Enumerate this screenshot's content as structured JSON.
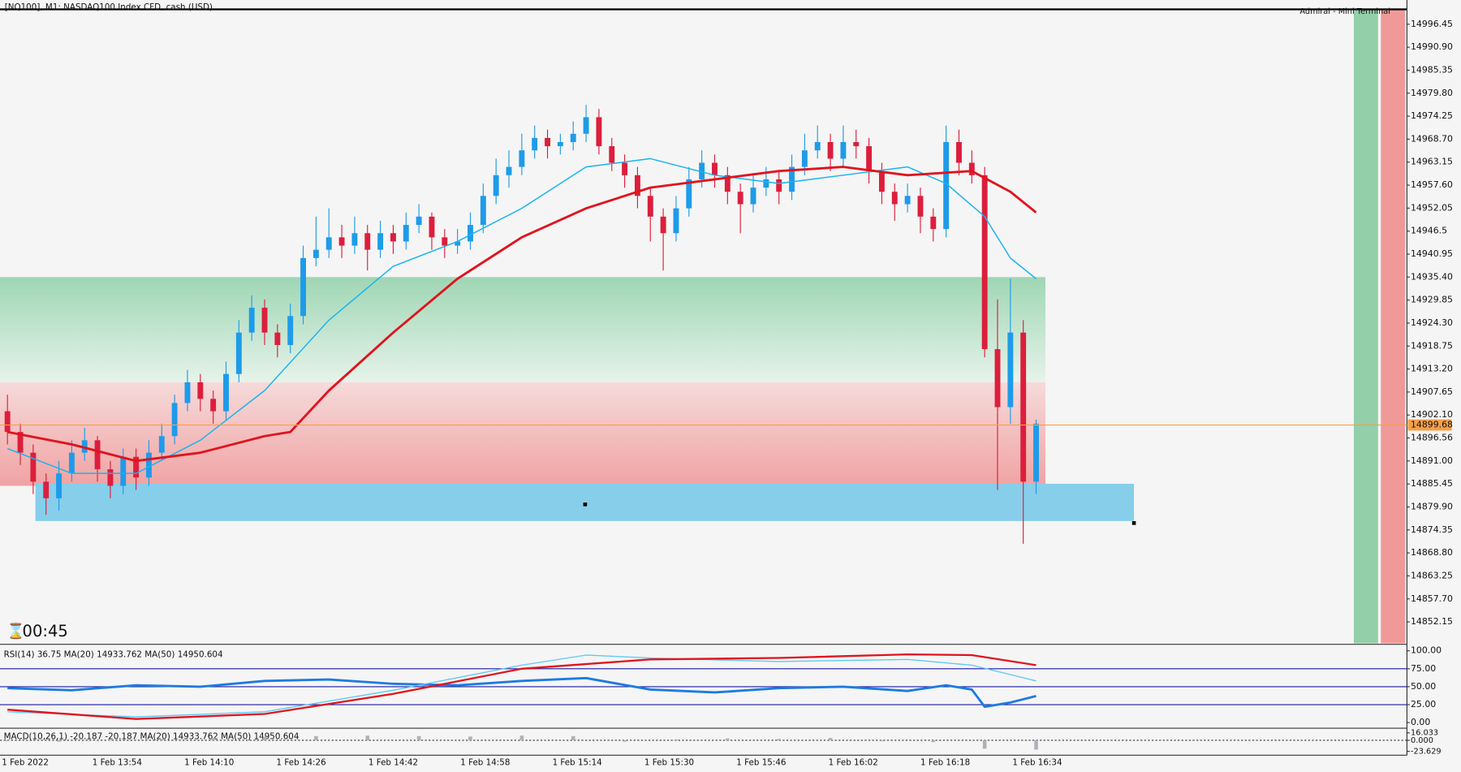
{
  "header": {
    "symbol": "[NQ100], M1:  NASDAQ100 Index CFD, cash (USD)",
    "terminal": "Admiral - Mini Terminal",
    "timer": "00:45"
  },
  "chart_data": {
    "type": "candlestick",
    "colors": {
      "up": "#1e9be9",
      "down": "#dc1e3c",
      "ma20": "#18b4ef",
      "ma50": "#e0141e"
    },
    "ylim": [
      14846.97,
      15000.05
    ],
    "yticks": [
      14996.45,
      {
        "value": 14990.9,
        "label": "14990.90"
      },
      14985.35,
      {
        "value": 14979.8,
        "label": "14979.80"
      },
      14974.25,
      {
        "value": 14968.7,
        "label": "14968.70"
      },
      14963.15,
      {
        "value": 14957.6,
        "label": "14957.60"
      },
      14952.05,
      14946.5,
      14940.95,
      {
        "value": 14935.4,
        "label": "14935.40"
      },
      14929.85,
      {
        "value": 14924.3,
        "label": "14924.30"
      },
      14918.75,
      {
        "value": 14913.2,
        "label": "14913.20"
      },
      14907.65,
      {
        "value": 14902.1,
        "label": "14902.10"
      },
      14896.56,
      {
        "value": 14891.0,
        "label": "14891.00"
      },
      14885.45,
      {
        "value": 14879.9,
        "label": "14879.90"
      },
      14874.35,
      {
        "value": 14868.8,
        "label": "14868.80"
      },
      14863.25,
      {
        "value": 14857.7,
        "label": "14857.70"
      },
      14852.15
    ],
    "current_price": {
      "value": 14899.68,
      "label": "14899.68"
    },
    "x_labels": [
      "1 Feb 2022",
      "1 Feb 13:54",
      "1 Feb 14:10",
      "1 Feb 14:26",
      "1 Feb 14:42",
      "1 Feb 14:58",
      "1 Feb 15:14",
      "1 Feb 15:30",
      "1 Feb 15:46",
      "1 Feb 16:02",
      "1 Feb 16:18",
      "1 Feb 16:34"
    ],
    "ohlc": [
      [
        14903,
        14907,
        14895,
        14898
      ],
      [
        14898,
        14900,
        14890,
        14893
      ],
      [
        14893,
        14895,
        14883,
        14886
      ],
      [
        14886,
        14888,
        14878,
        14882
      ],
      [
        14882,
        14891,
        14879,
        14888
      ],
      [
        14888,
        14896,
        14886,
        14893
      ],
      [
        14893,
        14899,
        14891,
        14896
      ],
      [
        14896,
        14897,
        14886,
        14889
      ],
      [
        14889,
        14891,
        14882,
        14885
      ],
      [
        14885,
        14894,
        14883,
        14892
      ],
      [
        14892,
        14894,
        14884,
        14887
      ],
      [
        14887,
        14896,
        14885,
        14893
      ],
      [
        14893,
        14900,
        14891,
        14897
      ],
      [
        14897,
        14907,
        14895,
        14905
      ],
      [
        14905,
        14913,
        14903,
        14910
      ],
      [
        14910,
        14912,
        14903,
        14906
      ],
      [
        14906,
        14908,
        14900,
        14903
      ],
      [
        14903,
        14915,
        14901,
        14912
      ],
      [
        14912,
        14925,
        14910,
        14922
      ],
      [
        14922,
        14931,
        14920,
        14928
      ],
      [
        14928,
        14930,
        14919,
        14922
      ],
      [
        14922,
        14924,
        14916,
        14919
      ],
      [
        14919,
        14929,
        14917,
        14926
      ],
      [
        14926,
        14943,
        14924,
        14940
      ],
      [
        14940,
        14950,
        14938,
        14942
      ],
      [
        14942,
        14952,
        14940,
        14945
      ],
      [
        14945,
        14948,
        14940,
        14943
      ],
      [
        14943,
        14950,
        14941,
        14946
      ],
      [
        14946,
        14948,
        14937,
        14942
      ],
      [
        14942,
        14949,
        14940,
        14946
      ],
      [
        14946,
        14948,
        14941,
        14944
      ],
      [
        14944,
        14951,
        14942,
        14948
      ],
      [
        14948,
        14953,
        14946,
        14950
      ],
      [
        14950,
        14951,
        14942,
        14945
      ],
      [
        14945,
        14947,
        14940,
        14943
      ],
      [
        14943,
        14947,
        14941,
        14944
      ],
      [
        14944,
        14951,
        14942,
        14948
      ],
      [
        14948,
        14958,
        14946,
        14955
      ],
      [
        14955,
        14964,
        14953,
        14960
      ],
      [
        14960,
        14966,
        14957,
        14962
      ],
      [
        14962,
        14970,
        14960,
        14966
      ],
      [
        14966,
        14972,
        14964,
        14969
      ],
      [
        14969,
        14971,
        14964,
        14967
      ],
      [
        14967,
        14970,
        14965,
        14968
      ],
      [
        14968,
        14973,
        14966,
        14970
      ],
      [
        14970,
        14977,
        14968,
        14974
      ],
      [
        14974,
        14976,
        14965,
        14967
      ],
      [
        14967,
        14969,
        14961,
        14963
      ],
      [
        14963,
        14965,
        14957,
        14960
      ],
      [
        14960,
        14962,
        14952,
        14955
      ],
      [
        14955,
        14957,
        14944,
        14950
      ],
      [
        14950,
        14952,
        14937,
        14946
      ],
      [
        14946,
        14955,
        14944,
        14952
      ],
      [
        14952,
        14962,
        14950,
        14959
      ],
      [
        14959,
        14966,
        14957,
        14963
      ],
      [
        14963,
        14965,
        14957,
        14960
      ],
      [
        14960,
        14962,
        14953,
        14956
      ],
      [
        14956,
        14958,
        14946,
        14953
      ],
      [
        14953,
        14960,
        14951,
        14957
      ],
      [
        14957,
        14962,
        14955,
        14959
      ],
      [
        14959,
        14961,
        14953,
        14956
      ],
      [
        14956,
        14965,
        14954,
        14962
      ],
      [
        14962,
        14970,
        14960,
        14966
      ],
      [
        14966,
        14972,
        14964,
        14968
      ],
      [
        14968,
        14970,
        14961,
        14964
      ],
      [
        14964,
        14972,
        14962,
        14968
      ],
      [
        14968,
        14971,
        14964,
        14967
      ],
      [
        14967,
        14969,
        14958,
        14961
      ],
      [
        14961,
        14963,
        14953,
        14956
      ],
      [
        14956,
        14958,
        14949,
        14953
      ],
      [
        14953,
        14958,
        14951,
        14955
      ],
      [
        14955,
        14957,
        14946,
        14950
      ],
      [
        14950,
        14952,
        14944,
        14947
      ],
      [
        14947,
        14972,
        14945,
        14968
      ],
      [
        14968,
        14971,
        14960,
        14963
      ],
      [
        14963,
        14966,
        14958,
        14960
      ],
      [
        14960,
        14962,
        14916,
        14918
      ],
      [
        14918,
        14930,
        14884,
        14904
      ],
      [
        14904,
        14935,
        14900,
        14922
      ],
      [
        14922,
        14925,
        14871,
        14886
      ],
      [
        14886,
        14901,
        14883,
        14900
      ]
    ],
    "ma_series": [
      {
        "name": "ma20",
        "x": [
          0,
          5,
          10,
          15,
          20,
          25,
          30,
          35,
          40,
          45,
          50,
          55,
          60,
          65,
          70,
          73,
          76,
          78,
          80
        ],
        "values": [
          14894,
          14888,
          14888,
          14896,
          14908,
          14925,
          14938,
          14944,
          14952,
          14962,
          14964,
          14960,
          14958,
          14960,
          14962,
          14958,
          14950,
          14940,
          14935
        ]
      },
      {
        "name": "ma50",
        "x": [
          0,
          5,
          10,
          15,
          20,
          22,
          25,
          30,
          35,
          40,
          45,
          50,
          55,
          60,
          65,
          70,
          75,
          78,
          80
        ],
        "values": [
          14898,
          14895,
          14891,
          14893,
          14897,
          14898,
          14908,
          14922,
          14935,
          14945,
          14952,
          14957,
          14959,
          14961,
          14962,
          14960,
          14961,
          14956,
          14951
        ]
      }
    ],
    "zones": [
      {
        "name": "green",
        "top": 14935.4,
        "bottom": 14910.0
      },
      {
        "name": "red",
        "top": 14910.0,
        "bottom": 14885.0
      },
      {
        "name": "blue",
        "top": 14885.5,
        "bottom": 14876.5
      }
    ],
    "rsi": {
      "label": "RSI(14) 36.75 MA(20) 14933.762 MA(50) 14950.604",
      "ylim": [
        0,
        100
      ],
      "yticks": [
        {
          "value": 100,
          "label": "100.00"
        },
        {
          "value": 75,
          "label": "75.00"
        },
        {
          "value": 50,
          "label": "50.00"
        },
        {
          "value": 25,
          "label": "25.00"
        },
        {
          "value": 0,
          "label": "0.00"
        }
      ],
      "levels": [
        75,
        50,
        25
      ],
      "series": [
        {
          "name": "rsi",
          "color": "#1e7be0",
          "x": [
            0,
            5,
            10,
            15,
            20,
            25,
            30,
            35,
            40,
            45,
            50,
            55,
            60,
            65,
            70,
            73,
            75,
            76,
            78,
            80
          ],
          "values": [
            48,
            45,
            52,
            50,
            58,
            60,
            54,
            52,
            58,
            62,
            46,
            42,
            48,
            50,
            44,
            52,
            46,
            22,
            28,
            37
          ]
        },
        {
          "name": "ma20",
          "color": "#5fc8f5",
          "x": [
            0,
            10,
            20,
            30,
            40,
            45,
            50,
            60,
            70,
            75,
            80
          ],
          "values": [
            15,
            8,
            15,
            45,
            80,
            94,
            90,
            85,
            88,
            80,
            58
          ]
        },
        {
          "name": "ma50",
          "color": "#e0141e",
          "x": [
            0,
            10,
            20,
            30,
            40,
            50,
            60,
            70,
            75,
            80
          ],
          "values": [
            18,
            5,
            12,
            40,
            75,
            88,
            90,
            95,
            94,
            80
          ]
        }
      ]
    },
    "macd": {
      "label": "MACD(10,26,1) -20.187 -20.187 MA(20) 14933.762 MA(50) 14950.604",
      "ylim": [
        -30,
        24
      ],
      "yticks": [
        16.033,
        {
          "value": 0,
          "label": "0.000"
        },
        -23.629
      ],
      "hist_x": [
        0,
        4,
        8,
        12,
        16,
        20,
        24,
        28,
        32,
        36,
        40,
        44,
        48,
        52,
        56,
        60,
        64,
        68,
        72,
        76,
        80
      ],
      "hist": [
        -2,
        -3,
        -1,
        3,
        5,
        8,
        9,
        10,
        9,
        8,
        10,
        9,
        -3,
        2,
        4,
        3,
        5,
        -2,
        -4,
        -18,
        -20
      ]
    }
  }
}
